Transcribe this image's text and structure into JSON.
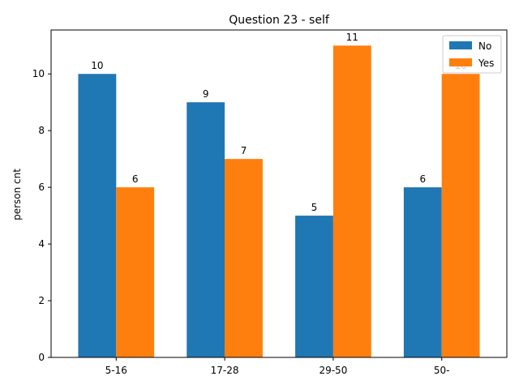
{
  "chart_data": {
    "type": "bar",
    "title": "Question 23 - self",
    "xlabel": "",
    "ylabel": "person cnt",
    "categories": [
      "5-16",
      "17-28",
      "29-50",
      "50-"
    ],
    "series": [
      {
        "name": "No",
        "values": [
          10,
          9,
          5,
          6
        ],
        "color": "#1f77b4"
      },
      {
        "name": "Yes",
        "values": [
          6,
          7,
          11,
          10
        ],
        "color": "#ff7f0e"
      }
    ],
    "ylim": [
      0,
      11.55
    ],
    "yticks": [
      0,
      2,
      4,
      6,
      8,
      10
    ],
    "grid": false,
    "legend_position": "top-right"
  }
}
